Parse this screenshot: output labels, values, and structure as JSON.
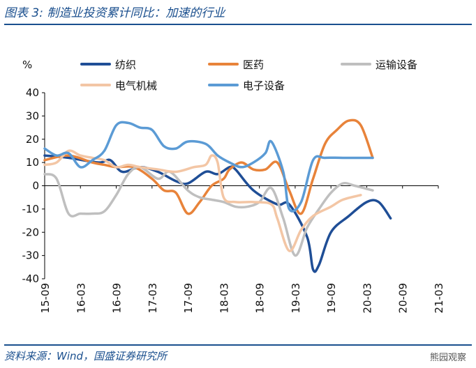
{
  "header": {
    "title": "图表 3:  制造业投资累计同比：加速的行业"
  },
  "footer": {
    "source": "资料来源：Wind，国盛证券研究所",
    "watermark": "熊园观察"
  },
  "chart_data": {
    "type": "line",
    "ylabel": "%",
    "ylim": [
      -40,
      40
    ],
    "yticks": [
      40,
      30,
      20,
      10,
      0,
      -10,
      -20,
      -30,
      -40
    ],
    "x_tick_labels": [
      "15-09",
      "16-03",
      "16-09",
      "17-03",
      "17-09",
      "18-03",
      "18-09",
      "19-03",
      "19-09",
      "20-03",
      "20-09",
      "21-03"
    ],
    "x_months": 67,
    "legend_position": "top",
    "series": [
      {
        "name": "纺织",
        "color": "#1f4e96",
        "points": [
          [
            0,
            13
          ],
          [
            4,
            12
          ],
          [
            9,
            10
          ],
          [
            11,
            11
          ],
          [
            13,
            6
          ],
          [
            16,
            8
          ],
          [
            19,
            6
          ],
          [
            22,
            2
          ],
          [
            24,
            1
          ],
          [
            27,
            6
          ],
          [
            29,
            5
          ],
          [
            31,
            8
          ],
          [
            32,
            7
          ],
          [
            35,
            -2
          ],
          [
            39,
            -8
          ],
          [
            41,
            -8
          ],
          [
            44,
            -22
          ],
          [
            45,
            -36
          ],
          [
            46,
            -34
          ],
          [
            48,
            -20
          ],
          [
            51,
            -13
          ],
          [
            54,
            -7
          ],
          [
            56,
            -7
          ],
          [
            58,
            -14
          ]
        ]
      },
      {
        "name": "医药",
        "color": "#e8833a",
        "points": [
          [
            0,
            11
          ],
          [
            4,
            13
          ],
          [
            8,
            10
          ],
          [
            10,
            9
          ],
          [
            12,
            8
          ],
          [
            15,
            8
          ],
          [
            18,
            3
          ],
          [
            20,
            -2
          ],
          [
            22,
            -3
          ],
          [
            24,
            -12
          ],
          [
            26,
            -7
          ],
          [
            28,
            0
          ],
          [
            30,
            3
          ],
          [
            31,
            7
          ],
          [
            33,
            10
          ],
          [
            35,
            7
          ],
          [
            37,
            7
          ],
          [
            39,
            10
          ],
          [
            41,
            -2
          ],
          [
            43,
            -12
          ],
          [
            45,
            3
          ],
          [
            47,
            18
          ],
          [
            49,
            24
          ],
          [
            51,
            28
          ],
          [
            53,
            26
          ],
          [
            55,
            12
          ]
        ]
      },
      {
        "name": "运输设备",
        "color": "#bfbfbf",
        "points": [
          [
            0,
            5
          ],
          [
            2,
            3
          ],
          [
            4,
            -12
          ],
          [
            6,
            -12
          ],
          [
            8,
            -12
          ],
          [
            10,
            -11
          ],
          [
            12,
            -4
          ],
          [
            14,
            5
          ],
          [
            16,
            8
          ],
          [
            19,
            3
          ],
          [
            21,
            6
          ],
          [
            24,
            -2
          ],
          [
            26,
            -5
          ],
          [
            28,
            -6
          ],
          [
            30,
            -7
          ],
          [
            32,
            -9
          ],
          [
            34,
            -9
          ],
          [
            36,
            -7
          ],
          [
            38,
            -1
          ],
          [
            40,
            -14
          ],
          [
            42,
            -30
          ],
          [
            44,
            -18
          ],
          [
            46,
            -10
          ],
          [
            48,
            -3
          ],
          [
            50,
            1
          ],
          [
            52,
            0
          ],
          [
            55,
            -2
          ]
        ]
      },
      {
        "name": "电气机械",
        "color": "#f3c6a5",
        "points": [
          [
            0,
            9
          ],
          [
            2,
            10
          ],
          [
            4,
            15
          ],
          [
            6,
            13
          ],
          [
            8,
            12
          ],
          [
            10,
            11
          ],
          [
            12,
            8
          ],
          [
            14,
            9
          ],
          [
            16,
            8
          ],
          [
            19,
            7
          ],
          [
            22,
            6
          ],
          [
            25,
            8
          ],
          [
            27,
            9
          ],
          [
            28,
            13
          ],
          [
            29,
            10
          ],
          [
            30,
            -5
          ],
          [
            32,
            -7
          ],
          [
            35,
            -7
          ],
          [
            38,
            -8
          ],
          [
            39,
            -14
          ],
          [
            41,
            -28
          ],
          [
            43,
            -19
          ],
          [
            45,
            -13
          ],
          [
            48,
            -9
          ],
          [
            50,
            -6
          ],
          [
            53,
            -4
          ]
        ]
      },
      {
        "name": "电子设备",
        "color": "#5b9bd5",
        "points": [
          [
            0,
            16
          ],
          [
            2,
            13
          ],
          [
            4,
            14
          ],
          [
            6,
            8
          ],
          [
            8,
            11
          ],
          [
            10,
            15
          ],
          [
            12,
            26
          ],
          [
            14,
            27
          ],
          [
            16,
            25
          ],
          [
            18,
            24
          ],
          [
            20,
            17
          ],
          [
            22,
            16
          ],
          [
            24,
            19
          ],
          [
            27,
            18
          ],
          [
            29,
            13
          ],
          [
            31,
            10
          ],
          [
            33,
            8
          ],
          [
            35,
            10
          ],
          [
            37,
            14
          ],
          [
            38,
            19
          ],
          [
            40,
            6
          ],
          [
            41,
            -10
          ],
          [
            43,
            -7
          ],
          [
            45,
            11
          ],
          [
            47,
            12
          ],
          [
            50,
            12
          ],
          [
            55,
            12
          ]
        ]
      }
    ]
  }
}
